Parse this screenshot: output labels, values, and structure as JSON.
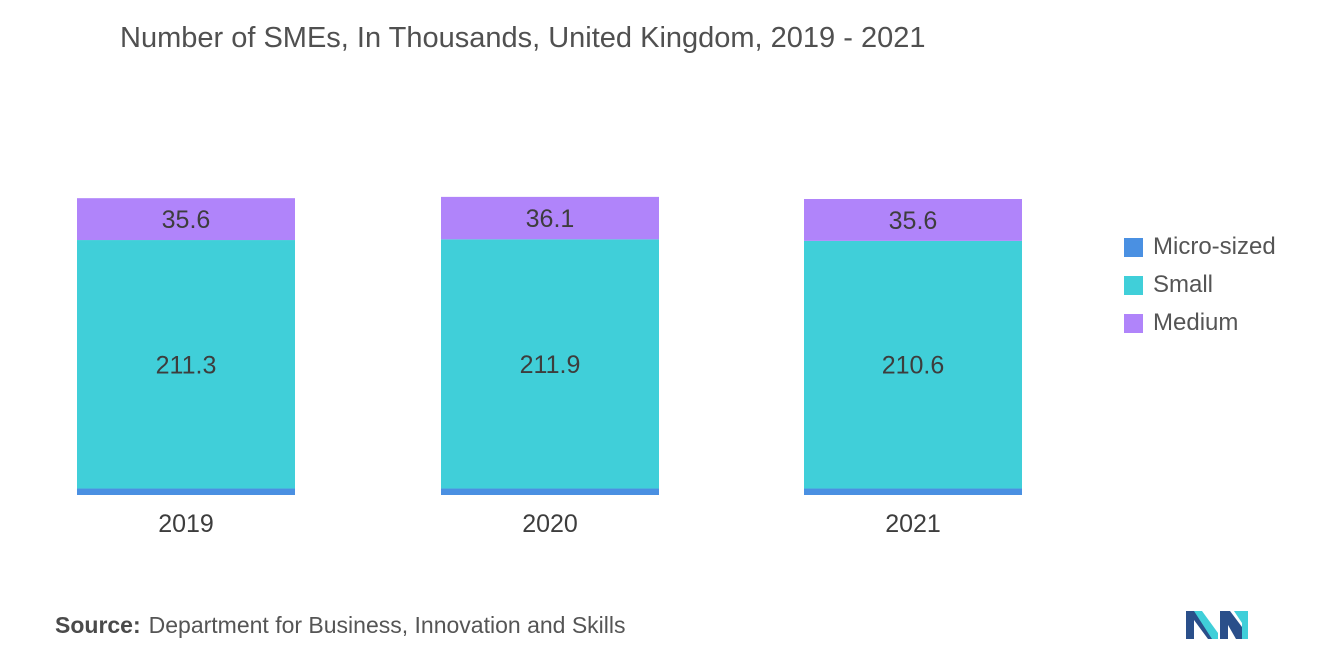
{
  "title": "Number of SMEs, In Thousands, United Kingdom, 2019 - 2021",
  "source": {
    "label": "Source:",
    "text": "Department for Business, Innovation and Skills"
  },
  "colors": {
    "micro": "#4a90e2",
    "small": "#40cfd9",
    "medium": "#b084fa"
  },
  "chart_data": {
    "type": "bar",
    "stacked": true,
    "categories": [
      "2019",
      "2020",
      "2021"
    ],
    "series": [
      {
        "name": "Micro-sized",
        "values": [
          5.5,
          5.5,
          5.5
        ],
        "labels": [
          "",
          "",
          ""
        ]
      },
      {
        "name": "Small",
        "values": [
          211.3,
          211.9,
          210.6
        ],
        "labels": [
          "211.3",
          "211.9",
          "210.6"
        ]
      },
      {
        "name": "Medium",
        "values": [
          35.6,
          36.1,
          35.6
        ],
        "labels": [
          "35.6",
          "36.1",
          "35.6"
        ]
      }
    ],
    "legend_position": "right",
    "grid": false
  }
}
